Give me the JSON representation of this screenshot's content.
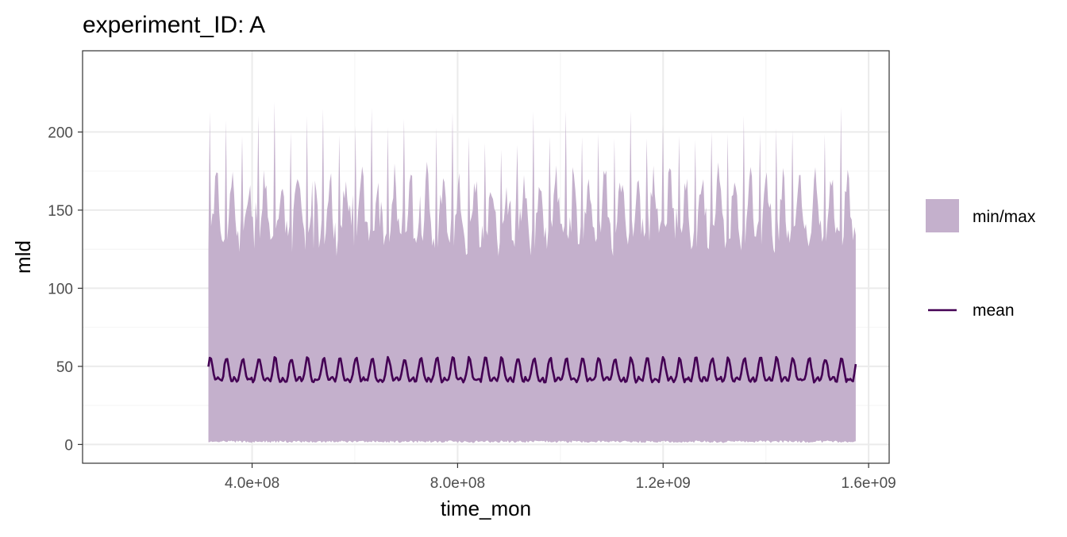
{
  "chart_data": {
    "type": "area",
    "title": "experiment_ID: A",
    "xlabel": "time_mon",
    "ylabel": "mld",
    "xlim": [
      70000000,
      1640000000
    ],
    "ylim": [
      -12,
      252
    ],
    "x_ticks": [
      400000000,
      800000000,
      1200000000,
      1600000000
    ],
    "x_tick_labels": [
      "4.0e+08",
      "8.0e+08",
      "1.2e+09",
      "1.6e+09"
    ],
    "y_ticks": [
      0,
      50,
      100,
      150,
      200
    ],
    "y_tick_labels": [
      "0",
      "50",
      "100",
      "150",
      "200"
    ],
    "grid": true,
    "legend_position": "right",
    "colors": {
      "ribbon": "#c4b0cc",
      "mean": "#440154",
      "panel_border": "#333333",
      "grid_major": "#ebebeb",
      "grid_minor": "#f4f4f4"
    },
    "series": [
      {
        "name": "min/max",
        "kind": "ribbon",
        "x_start": 315000000,
        "x_end": 1575000000,
        "period": 31500000,
        "lower_approx": 1,
        "upper_peak_values": [
          218,
          217,
          218,
          215,
          225,
          220,
          215,
          224,
          218,
          220,
          222,
          205,
          226,
          215,
          220,
          218,
          210,
          205,
          206,
          210,
          218,
          215,
          213,
          208,
          215,
          212,
          214,
          210,
          216,
          212,
          210,
          220,
          209,
          218,
          218,
          210,
          220,
          216,
          212,
          231,
          216,
          209,
          210,
          166
        ]
      },
      {
        "name": "mean",
        "kind": "line",
        "x_start": 315000000,
        "x_end": 1575000000,
        "period": 31500000,
        "mean_level": 45.5,
        "amplitude": 6.5,
        "range": [
          38,
          56
        ]
      }
    ]
  }
}
